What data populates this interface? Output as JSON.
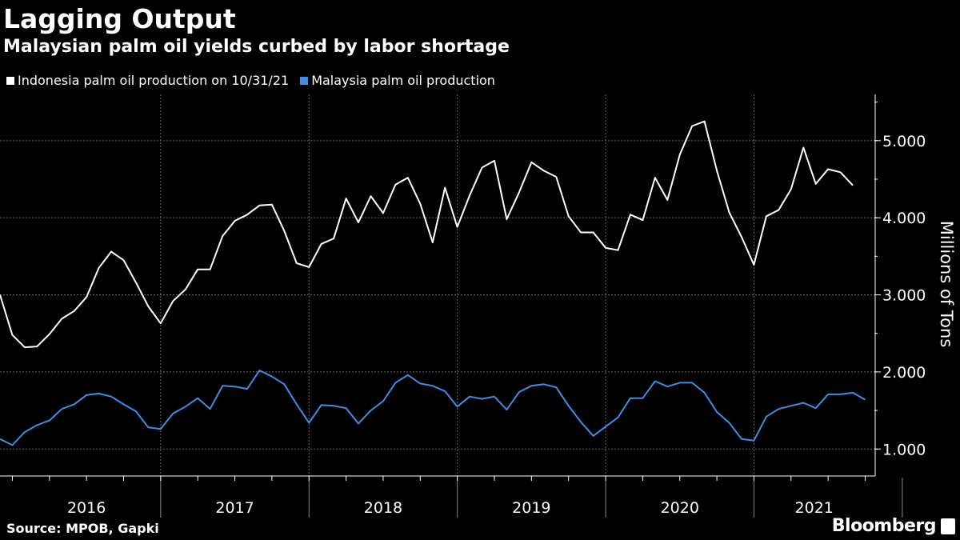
{
  "header": {
    "title": "Lagging Output",
    "subtitle": "Malaysian palm oil yields curbed by labor shortage"
  },
  "footer": {
    "source": "Source: MPOB, Gapki",
    "brand": "Bloomberg"
  },
  "colors": {
    "background": "#000000",
    "indonesia": "#ffffff",
    "malaysia": "#3d8ee6",
    "grid": "#666666"
  },
  "chart_data": {
    "type": "line",
    "title": "Lagging Output",
    "subtitle": "Malaysian palm oil yields curbed by labor shortage",
    "ylabel": "Millions of Tons",
    "xlabel": "",
    "ylim": [
      0.65,
      5.6
    ],
    "y_ticks": [
      1.0,
      2.0,
      3.0,
      4.0,
      5.0
    ],
    "y_tick_labels": [
      "1.000",
      "2.000",
      "3.000",
      "4.000",
      "5.000"
    ],
    "year_labels": [
      "2016",
      "2017",
      "2018",
      "2019",
      "2020",
      "2021"
    ],
    "start": "2015-12",
    "legend_position": "top-left",
    "series": [
      {
        "name": "Indonesia palm oil production on 10/31/21",
        "color": "#ffffff",
        "values": [
          3.0,
          2.48,
          2.32,
          2.33,
          2.49,
          2.69,
          2.79,
          2.97,
          3.35,
          3.56,
          3.45,
          3.16,
          2.85,
          2.63,
          2.92,
          3.07,
          3.33,
          3.33,
          3.76,
          3.96,
          4.04,
          4.16,
          4.17,
          3.83,
          3.41,
          3.36,
          3.66,
          3.73,
          4.25,
          3.94,
          4.28,
          4.06,
          4.43,
          4.52,
          4.18,
          3.68,
          4.39,
          3.88,
          4.29,
          4.65,
          4.74,
          3.98,
          4.33,
          4.72,
          4.61,
          4.53,
          4.02,
          3.81,
          3.81,
          3.61,
          3.58,
          4.04,
          3.97,
          4.52,
          4.23,
          4.82,
          5.19,
          5.25,
          4.61,
          4.07,
          3.75,
          3.39,
          4.02,
          4.1,
          4.37,
          4.91,
          4.44,
          4.63,
          4.59,
          4.42
        ]
      },
      {
        "name": "Malaysia palm oil production",
        "color": "#3d8ee6",
        "values": [
          1.13,
          1.05,
          1.22,
          1.31,
          1.37,
          1.52,
          1.58,
          1.7,
          1.72,
          1.68,
          1.58,
          1.49,
          1.28,
          1.26,
          1.46,
          1.55,
          1.66,
          1.52,
          1.82,
          1.81,
          1.78,
          2.02,
          1.94,
          1.84,
          1.58,
          1.34,
          1.57,
          1.56,
          1.53,
          1.33,
          1.5,
          1.62,
          1.86,
          1.96,
          1.85,
          1.82,
          1.75,
          1.55,
          1.68,
          1.65,
          1.68,
          1.51,
          1.74,
          1.82,
          1.84,
          1.8,
          1.56,
          1.35,
          1.17,
          1.29,
          1.41,
          1.66,
          1.66,
          1.88,
          1.81,
          1.86,
          1.86,
          1.73,
          1.48,
          1.34,
          1.13,
          1.11,
          1.42,
          1.52,
          1.56,
          1.6,
          1.53,
          1.71,
          1.71,
          1.73,
          1.64
        ]
      }
    ]
  }
}
